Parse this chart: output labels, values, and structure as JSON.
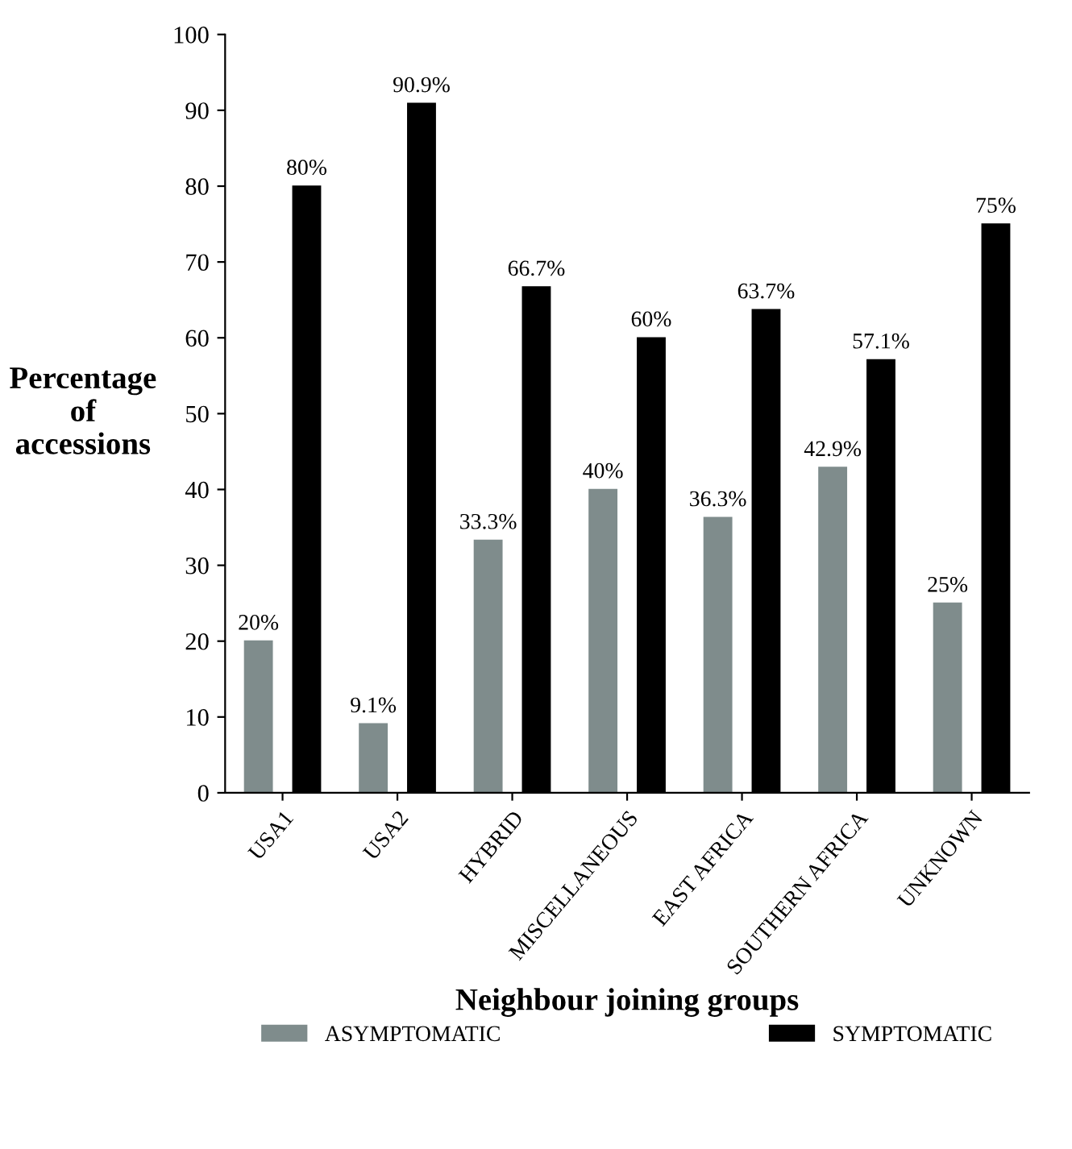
{
  "chart_data": {
    "type": "bar",
    "xlabel": "Neighbour joining groups",
    "ylabel": "Percentage\nof\naccessions",
    "categories": [
      "USA1",
      "USA2",
      "HYBRID",
      "MISCELLANEOUS",
      "EAST AFRICA",
      "SOUTHERN AFRICA",
      "UNKNOWN"
    ],
    "series": [
      {
        "name": "ASYMPTOMATIC",
        "color": "#7f8c8c",
        "values": [
          20,
          9.1,
          33.3,
          40,
          36.3,
          42.9,
          25
        ],
        "value_labels": [
          "20%",
          "9.1%",
          "33.3%",
          "40%",
          "36.3%",
          "42.9%",
          "25%"
        ]
      },
      {
        "name": "SYMPTOMATIC",
        "color": "#000000",
        "values": [
          80,
          90.9,
          66.7,
          60,
          63.7,
          57.1,
          75
        ],
        "value_labels": [
          "80%",
          "90.9%",
          "66.7%",
          "60%",
          "63.7%",
          "57.1%",
          "75%"
        ]
      }
    ],
    "ylim": [
      0,
      100
    ],
    "yticks": [
      0,
      10,
      20,
      30,
      40,
      50,
      60,
      70,
      80,
      90,
      100
    ],
    "grid": false,
    "legend": "bottom"
  }
}
